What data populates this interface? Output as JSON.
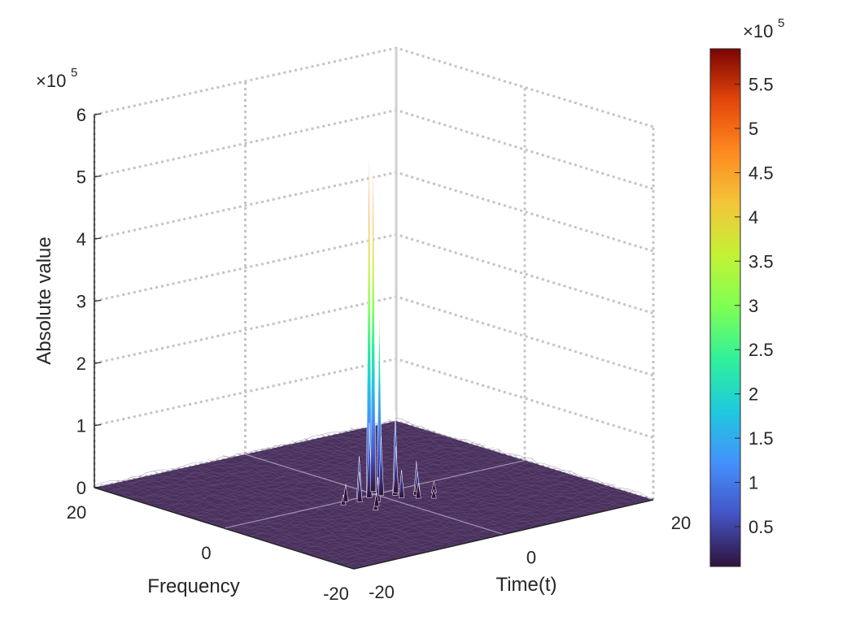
{
  "chart_data": {
    "type": "surface3d",
    "title": "",
    "xlabel": "Time(t)",
    "ylabel": "Frequency",
    "zlabel": "Absolute value",
    "x_ticks": [
      "-20",
      "0",
      "20"
    ],
    "y_ticks": [
      "-20",
      "0",
      "20"
    ],
    "z_ticks": [
      "0",
      "1",
      "2",
      "3",
      "4",
      "5",
      "6"
    ],
    "z_exponent": "5",
    "xlim": [
      -20,
      20
    ],
    "ylim": [
      -20,
      20
    ],
    "zlim": [
      0,
      600000
    ],
    "grid": "dotted",
    "colormap": "turbo",
    "colorbar": {
      "position": "right",
      "exponent": "5",
      "ticks": [
        "0.5",
        "1",
        "1.5",
        "2",
        "2.5",
        "3",
        "3.5",
        "4",
        "4.5",
        "5",
        "5.5"
      ],
      "limits": [
        5000,
        590000
      ]
    },
    "noise_floor_color": "#3b1f4f",
    "peaks": [
      {
        "t": -0.2,
        "f": 0.6,
        "value": 565000
      },
      {
        "t": 0.6,
        "f": 0.9,
        "value": 545000
      },
      {
        "t": 0.4,
        "f": -0.3,
        "value": 300000
      },
      {
        "t": 1.4,
        "f": -1.6,
        "value": 135000
      },
      {
        "t": -1.2,
        "f": -0.6,
        "value": 120000
      },
      {
        "t": 0.2,
        "f": -0.8,
        "value": 95000
      },
      {
        "t": 2.0,
        "f": -1.0,
        "value": 75000
      },
      {
        "t": -2.2,
        "f": -0.2,
        "value": 68000
      },
      {
        "t": 3.0,
        "f": -3.0,
        "value": 55000
      },
      {
        "t": -3.0,
        "f": -1.2,
        "value": 48000
      },
      {
        "t": 1.2,
        "f": -2.8,
        "value": 45000
      },
      {
        "t": -1.6,
        "f": -2.4,
        "value": 40000
      },
      {
        "t": 4.0,
        "f": -2.0,
        "value": 32000
      },
      {
        "t": -4.0,
        "f": -0.2,
        "value": 28000
      },
      {
        "t": 2.4,
        "f": -4.0,
        "value": 25000
      },
      {
        "t": -2.8,
        "f": -3.6,
        "value": 22000
      },
      {
        "t": 5.0,
        "f": -3.4,
        "value": 18000
      },
      {
        "t": -5.0,
        "f": -1.0,
        "value": 16000
      },
      {
        "t": 3.6,
        "f": -5.0,
        "value": 14000
      },
      {
        "t": -3.8,
        "f": -4.6,
        "value": 12000
      }
    ]
  }
}
